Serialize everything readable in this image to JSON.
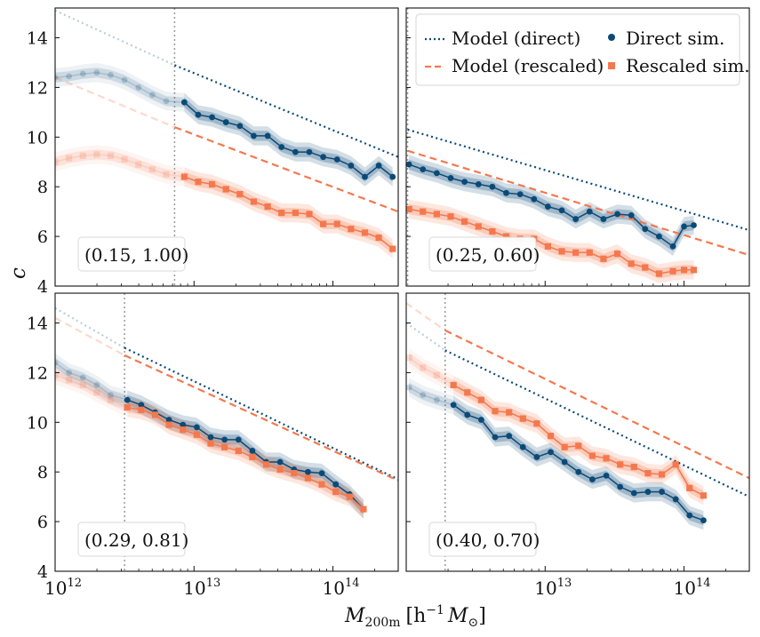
{
  "figure": {
    "xlabel": "M",
    "xlabel_sub": "200m",
    "xlabel_units": "[h",
    "xlabel_units_sup": "−1",
    "xlabel_units_tail": "M",
    "xlabel_units_sub": "⊙",
    "xlabel_close": "]",
    "ylabel": "c"
  },
  "colors": {
    "direct": "#0b4a77",
    "rescaled": "#f4784e",
    "vline": "#9a9a9a"
  },
  "legend": {
    "items": [
      {
        "label": "Model (direct)",
        "style": "dotted",
        "series": "direct"
      },
      {
        "label": "Direct sim.",
        "style": "circle",
        "series": "direct"
      },
      {
        "label": "Model (rescaled)",
        "style": "dashed",
        "series": "rescaled"
      },
      {
        "label": "Rescaled sim.",
        "style": "square",
        "series": "rescaled"
      }
    ]
  },
  "axes": {
    "xticks": [
      {
        "exp": 12,
        "label": "10",
        "sup": "12"
      },
      {
        "exp": 13,
        "label": "10",
        "sup": "13"
      },
      {
        "exp": 14,
        "label": "10",
        "sup": "14"
      }
    ],
    "yticks": [
      4,
      6,
      8,
      10,
      12,
      14
    ]
  },
  "chart_data": [
    {
      "type": "line",
      "annotation": "(0.15, 1.00)",
      "xscale": "log",
      "xlim_log10": [
        12.0,
        14.47
      ],
      "ylim": [
        4.0,
        15.2
      ],
      "vline_log10": 12.86,
      "model_direct": {
        "x_log10": [
          12.0,
          12.86,
          14.47
        ],
        "y": [
          15.1,
          12.9,
          9.2
        ],
        "faded_before": 12.86
      },
      "model_rescaled": {
        "x_log10": [
          12.0,
          12.86,
          14.47
        ],
        "y": [
          12.4,
          10.4,
          7.0
        ],
        "faded_before": 12.86
      },
      "direct_sim": {
        "x_log10": [
          12.0,
          12.1,
          12.2,
          12.3,
          12.4,
          12.5,
          12.6,
          12.7,
          12.8,
          12.93,
          13.03,
          13.13,
          13.23,
          13.33,
          13.43,
          13.53,
          13.63,
          13.73,
          13.83,
          13.93,
          14.03,
          14.13,
          14.23,
          14.33,
          14.43
        ],
        "y": [
          12.4,
          12.45,
          12.55,
          12.6,
          12.5,
          12.3,
          12.0,
          11.7,
          11.45,
          11.4,
          10.9,
          10.8,
          10.6,
          10.45,
          10.05,
          10.05,
          9.6,
          9.4,
          9.4,
          9.2,
          9.1,
          8.85,
          8.4,
          8.85,
          8.4
        ],
        "faded_before": 12.86
      },
      "rescaled_sim": {
        "x_log10": [
          12.0,
          12.1,
          12.2,
          12.3,
          12.4,
          12.5,
          12.6,
          12.7,
          12.8,
          12.93,
          13.03,
          13.13,
          13.23,
          13.33,
          13.43,
          13.53,
          13.63,
          13.73,
          13.83,
          13.93,
          14.03,
          14.13,
          14.23,
          14.33,
          14.43
        ],
        "y": [
          9.0,
          9.15,
          9.25,
          9.3,
          9.25,
          9.1,
          8.9,
          8.7,
          8.5,
          8.4,
          8.2,
          8.1,
          7.9,
          7.7,
          7.4,
          7.2,
          6.95,
          6.95,
          6.9,
          6.5,
          6.5,
          6.3,
          6.15,
          5.95,
          5.5
        ],
        "faded_before": 12.86
      }
    },
    {
      "type": "line",
      "annotation": "(0.25, 0.60)",
      "xscale": "log",
      "xlim_log10": [
        12.0,
        14.47
      ],
      "ylim": [
        4.0,
        15.2
      ],
      "vline_log10": 12.01,
      "model_direct": {
        "x_log10": [
          12.01,
          14.47
        ],
        "y": [
          10.3,
          6.25
        ],
        "faded_before": 12.01
      },
      "model_rescaled": {
        "x_log10": [
          12.01,
          14.47
        ],
        "y": [
          9.45,
          5.25
        ],
        "faded_before": 12.01
      },
      "direct_sim": {
        "x_log10": [
          12.02,
          12.12,
          12.22,
          12.32,
          12.42,
          12.52,
          12.62,
          12.72,
          12.82,
          12.92,
          13.02,
          13.12,
          13.22,
          13.32,
          13.42,
          13.52,
          13.62,
          13.72,
          13.82,
          13.92,
          14.0,
          14.07
        ],
        "y": [
          8.9,
          8.7,
          8.55,
          8.35,
          8.2,
          8.1,
          8.0,
          7.75,
          7.7,
          7.5,
          7.2,
          7.05,
          6.7,
          7.0,
          6.7,
          6.9,
          6.85,
          6.3,
          6.0,
          5.6,
          6.4,
          6.45
        ],
        "faded_before": 12.01
      },
      "rescaled_sim": {
        "x_log10": [
          12.02,
          12.12,
          12.22,
          12.32,
          12.42,
          12.52,
          12.62,
          12.72,
          12.82,
          12.92,
          13.02,
          13.12,
          13.22,
          13.32,
          13.42,
          13.52,
          13.62,
          13.72,
          13.82,
          13.92,
          14.0,
          14.07
        ],
        "y": [
          7.1,
          7.0,
          6.9,
          6.8,
          6.6,
          6.4,
          6.2,
          6.0,
          5.9,
          5.9,
          5.6,
          5.4,
          5.35,
          5.35,
          5.1,
          5.3,
          4.9,
          4.75,
          4.5,
          4.6,
          4.65,
          4.65
        ],
        "faded_before": 12.01
      }
    },
    {
      "type": "line",
      "annotation": "(0.29, 0.81)",
      "xscale": "log",
      "xlim_log10": [
        12.0,
        14.47
      ],
      "ylim": [
        4.0,
        15.2
      ],
      "vline_log10": 12.5,
      "model_direct": {
        "x_log10": [
          12.0,
          12.5,
          14.47
        ],
        "y": [
          14.6,
          13.0,
          7.7
        ],
        "faded_before": 12.5
      },
      "model_rescaled": {
        "x_log10": [
          12.0,
          12.5,
          14.47
        ],
        "y": [
          14.2,
          12.7,
          7.65
        ],
        "faded_before": 12.5
      },
      "direct_sim": {
        "x_log10": [
          12.0,
          12.1,
          12.2,
          12.3,
          12.4,
          12.52,
          12.62,
          12.72,
          12.82,
          12.92,
          13.02,
          13.12,
          13.22,
          13.32,
          13.42,
          13.52,
          13.62,
          13.72,
          13.82,
          13.92,
          14.02,
          14.12,
          14.22
        ],
        "y": [
          12.4,
          12.0,
          11.8,
          11.5,
          11.1,
          10.9,
          10.7,
          10.4,
          10.1,
          9.9,
          9.8,
          9.4,
          9.3,
          9.3,
          8.85,
          8.4,
          8.4,
          8.1,
          8.0,
          7.95,
          7.5,
          7.1,
          6.5
        ],
        "faded_before": 12.5
      },
      "rescaled_sim": {
        "x_log10": [
          12.0,
          12.1,
          12.2,
          12.3,
          12.4,
          12.52,
          12.62,
          12.72,
          12.82,
          12.92,
          13.02,
          13.12,
          13.22,
          13.32,
          13.42,
          13.52,
          13.62,
          13.72,
          13.82,
          13.92,
          14.02,
          14.12,
          14.22
        ],
        "y": [
          11.9,
          11.7,
          11.5,
          11.2,
          10.9,
          10.6,
          10.5,
          10.3,
          9.9,
          9.7,
          9.5,
          9.15,
          9.0,
          8.85,
          8.6,
          8.3,
          8.1,
          7.95,
          7.75,
          7.5,
          7.2,
          7.0,
          6.5
        ],
        "faded_before": 12.5
      }
    },
    {
      "type": "line",
      "annotation": "(0.40, 0.70)",
      "xscale": "log",
      "xlim_log10": [
        12.0,
        14.47
      ],
      "ylim": [
        4.0,
        15.2
      ],
      "vline_log10": 12.28,
      "model_direct": {
        "x_log10": [
          12.0,
          12.28,
          14.47
        ],
        "y": [
          14.0,
          12.9,
          7.0
        ],
        "faded_before": 12.28
      },
      "model_rescaled": {
        "x_log10": [
          12.0,
          12.28,
          14.47
        ],
        "y": [
          14.8,
          13.7,
          7.75
        ],
        "faded_before": 12.28
      },
      "direct_sim": {
        "x_log10": [
          12.02,
          12.12,
          12.22,
          12.34,
          12.44,
          12.54,
          12.64,
          12.74,
          12.84,
          12.94,
          13.04,
          13.14,
          13.24,
          13.34,
          13.44,
          13.54,
          13.64,
          13.74,
          13.84,
          13.94,
          14.04,
          14.14
        ],
        "y": [
          11.4,
          11.1,
          10.9,
          10.7,
          10.3,
          10.1,
          9.4,
          9.45,
          9.0,
          8.6,
          8.8,
          8.4,
          8.0,
          7.7,
          7.85,
          7.4,
          7.15,
          7.2,
          7.2,
          6.9,
          6.25,
          6.05
        ],
        "faded_before": 12.28
      },
      "rescaled_sim": {
        "x_log10": [
          12.02,
          12.12,
          12.22,
          12.34,
          12.44,
          12.54,
          12.64,
          12.74,
          12.84,
          12.94,
          13.04,
          13.14,
          13.24,
          13.34,
          13.44,
          13.54,
          13.64,
          13.74,
          13.84,
          13.94,
          14.04,
          14.14
        ],
        "y": [
          12.6,
          12.2,
          11.9,
          11.5,
          11.2,
          10.9,
          10.45,
          10.4,
          10.15,
          9.95,
          9.45,
          9.0,
          9.05,
          8.65,
          8.55,
          8.3,
          8.2,
          7.95,
          7.9,
          8.3,
          7.35,
          7.05
        ],
        "faded_before": 12.28
      }
    }
  ]
}
